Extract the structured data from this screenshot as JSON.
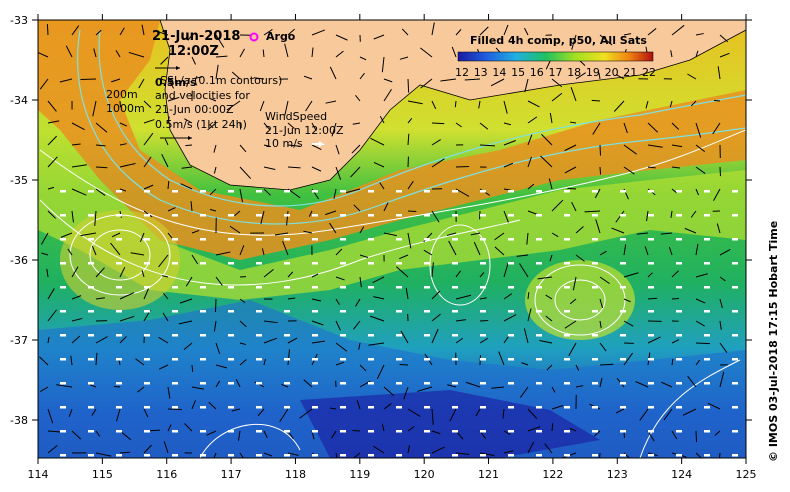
{
  "map": {
    "date": "21-Jun-2018",
    "time": "12:00Z",
    "argo_label": "Argo",
    "sla_text_line1": "SSL/a (0.1m contours)",
    "sla_text_line2": "and velocities for",
    "sla_text_line3": "21-Jun 00:00Z",
    "velocity_scale": "0.5m/s",
    "velocity_scale_alt": "0.5m/s (1kt 24h)",
    "isobath_200": "200m",
    "isobath_1000": "1000m",
    "wind_title": "WindSpeed",
    "wind_time": "21-Jun 12:00Z",
    "wind_scale": "10 m/s",
    "colorbar_title": "Filled 4h comp, p50, All Sats",
    "colorbar_ticks": [
      "12",
      "13",
      "14",
      "15",
      "16",
      "17",
      "18",
      "19",
      "20",
      "21",
      "22"
    ],
    "lon_ticks": [
      "114",
      "115",
      "116",
      "117",
      "118",
      "119",
      "120",
      "121",
      "122",
      "123",
      "124",
      "125"
    ],
    "lat_ticks": [
      "-33",
      "-34",
      "-35",
      "-36",
      "-37",
      "-38"
    ],
    "credit": "© IMOS 03-Jul-2018 17:15 Hobart Time",
    "colors": {
      "land": "#f8c99b",
      "cb_low": "#1a1aa0",
      "cb_high": "#b01010"
    }
  }
}
